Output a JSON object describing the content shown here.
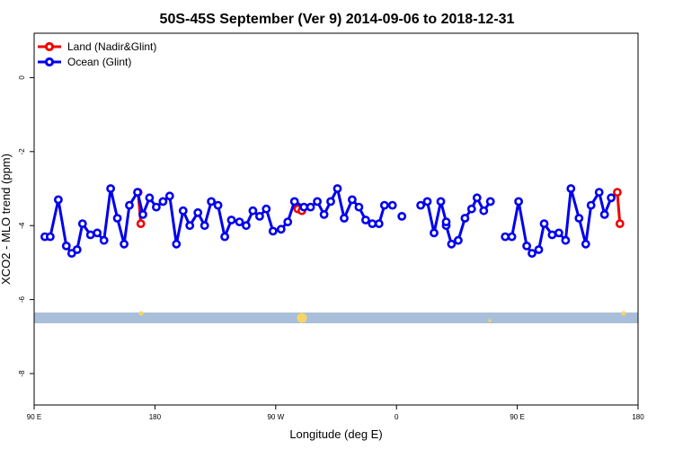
{
  "chart_data": {
    "type": "line",
    "title": "50S-45S September (Ver 9)   2014-09-06 to 2018-12-31",
    "xlabel": "Longitude (deg E)",
    "ylabel": "XCO2 - MLO trend (ppm)",
    "xlim": [
      90,
      540
    ],
    "ylim": [
      -8.85,
      1.2
    ],
    "xticks": [
      {
        "value": 90,
        "label": "90 E"
      },
      {
        "value": 180,
        "label": "180"
      },
      {
        "value": 270,
        "label": "90 W"
      },
      {
        "value": 360,
        "label": "0"
      },
      {
        "value": 450,
        "label": "90 E"
      },
      {
        "value": 540,
        "label": "180"
      }
    ],
    "yticks": [
      {
        "value": 0,
        "label": "0"
      },
      {
        "value": -2,
        "label": "-2"
      },
      {
        "value": -4,
        "label": "-4"
      },
      {
        "value": -6,
        "label": "-6"
      },
      {
        "value": -8,
        "label": "-8"
      }
    ],
    "legend_position": "top-left",
    "colors": {
      "land": "#ee0000",
      "ocean": "#0000ee",
      "band": "#a9bfd9",
      "sun": "#f7d565"
    },
    "series": [
      {
        "name": "Land (Nadir&Glint)",
        "color": "#ee0000",
        "segments": [
          [
            [
              167.5,
              -3.1
            ],
            [
              169.5,
              -3.95
            ]
          ],
          [
            [
              286.5,
              -3.55
            ],
            [
              289.5,
              -3.6
            ]
          ],
          [
            [
              524.5,
              -3.1
            ],
            [
              526.5,
              -3.95
            ]
          ]
        ]
      },
      {
        "name": "Ocean (Glint)",
        "color": "#0000ee",
        "segments": [
          [
            [
              98,
              -4.3
            ],
            [
              102,
              -4.3
            ],
            [
              108,
              -3.3
            ],
            [
              114,
              -4.55
            ],
            [
              118,
              -4.75
            ],
            [
              122,
              -4.65
            ],
            [
              126,
              -3.95
            ],
            [
              132,
              -4.25
            ],
            [
              137,
              -4.2
            ],
            [
              142,
              -4.4
            ],
            [
              147,
              -3.0
            ],
            [
              152,
              -3.8
            ],
            [
              157,
              -4.5
            ],
            [
              161,
              -3.45
            ],
            [
              167,
              -3.1
            ],
            [
              171,
              -3.7
            ],
            [
              176,
              -3.25
            ],
            [
              181,
              -3.5
            ],
            [
              186,
              -3.35
            ],
            [
              191,
              -3.2
            ],
            [
              196,
              -4.5
            ],
            [
              201,
              -3.6
            ],
            [
              206,
              -4.0
            ],
            [
              212,
              -3.65
            ],
            [
              217,
              -4.0
            ],
            [
              222,
              -3.35
            ],
            [
              227,
              -3.45
            ],
            [
              232,
              -4.3
            ],
            [
              237,
              -3.85
            ],
            [
              243,
              -3.9
            ],
            [
              248,
              -4.0
            ],
            [
              253,
              -3.6
            ],
            [
              258,
              -3.75
            ],
            [
              263,
              -3.55
            ],
            [
              268,
              -4.15
            ],
            [
              274,
              -4.1
            ],
            [
              279,
              -3.9
            ],
            [
              284,
              -3.35
            ],
            [
              291,
              -3.5
            ],
            [
              296,
              -3.5
            ],
            [
              301,
              -3.35
            ],
            [
              306,
              -3.7
            ],
            [
              311,
              -3.35
            ],
            [
              316,
              -3.0
            ],
            [
              321,
              -3.8
            ],
            [
              327,
              -3.3
            ],
            [
              332,
              -3.5
            ],
            [
              337,
              -3.85
            ],
            [
              342,
              -3.95
            ],
            [
              347,
              -3.95
            ],
            [
              351,
              -3.45
            ],
            [
              357,
              -3.45
            ]
          ],
          [
            [
              397,
              -4.0
            ],
            [
              401,
              -4.5
            ],
            [
              406,
              -4.4
            ],
            [
              411,
              -3.8
            ],
            [
              416,
              -3.55
            ],
            [
              420,
              -3.25
            ],
            [
              425,
              -3.6
            ],
            [
              430,
              -3.35
            ]
          ],
          [
            [
              364,
              -3.75
            ]
          ],
          [
            [
              378,
              -3.45
            ],
            [
              383,
              -3.35
            ],
            [
              388,
              -4.2
            ],
            [
              393,
              -3.35
            ],
            [
              397,
              -3.9
            ]
          ],
          [
            [
              441,
              -4.3
            ],
            [
              446,
              -4.3
            ],
            [
              451,
              -3.35
            ],
            [
              457,
              -4.55
            ],
            [
              461,
              -4.75
            ],
            [
              466,
              -4.65
            ],
            [
              470,
              -3.95
            ],
            [
              476,
              -4.25
            ],
            [
              481,
              -4.2
            ],
            [
              486,
              -4.4
            ],
            [
              490,
              -3.0
            ],
            [
              496,
              -3.8
            ],
            [
              501,
              -4.5
            ],
            [
              505,
              -3.45
            ],
            [
              511,
              -3.1
            ],
            [
              515,
              -3.7
            ],
            [
              520,
              -3.25
            ]
          ]
        ]
      }
    ]
  }
}
